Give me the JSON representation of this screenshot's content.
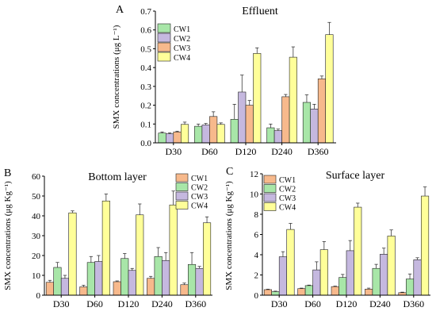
{
  "figure": {
    "colors": {
      "CW1": "#f7b98c",
      "CW2": "#a8e6a8",
      "CW3": "#c5b8df",
      "CW4": "#ffff99"
    },
    "icons": {
      "error-bar": "error-bar-icon"
    }
  },
  "chart_data": [
    {
      "type": "bar",
      "panel": "A",
      "title": "Effluent",
      "xlabel": "",
      "ylabel": "SMX concentrations (μg L⁻¹)",
      "ylim": [
        0,
        0.7
      ],
      "yticks": [
        "0.0",
        "0.1",
        "0.2",
        "0.3",
        "0.4",
        "0.5",
        "0.6",
        "0.7"
      ],
      "grid": false,
      "legend_position": "top-left",
      "categories": [
        "D30",
        "D60",
        "D120",
        "D240",
        "D360"
      ],
      "series": [
        {
          "name": "CW1",
          "color": "#a8e6a8",
          "values": [
            0.052,
            0.088,
            0.125,
            0.08,
            0.215
          ],
          "errors": [
            0.006,
            0.012,
            0.08,
            0.02,
            0.04
          ]
        },
        {
          "name": "CW2",
          "color": "#c5b8df",
          "values": [
            0.048,
            0.095,
            0.27,
            0.065,
            0.18
          ],
          "errors": [
            0.005,
            0.008,
            0.09,
            0.008,
            0.025
          ]
        },
        {
          "name": "CW3",
          "color": "#f7b98c",
          "values": [
            0.058,
            0.14,
            0.2,
            0.245,
            0.34
          ],
          "errors": [
            0.004,
            0.025,
            0.025,
            0.012,
            0.015
          ]
        },
        {
          "name": "CW4",
          "color": "#ffff99",
          "values": [
            0.098,
            0.098,
            0.475,
            0.455,
            0.575
          ],
          "errors": [
            0.012,
            0.008,
            0.03,
            0.055,
            0.065
          ]
        }
      ]
    },
    {
      "type": "bar",
      "panel": "B",
      "title": "Bottom layer",
      "xlabel": "",
      "ylabel": "SMX concentrations (μg Kg⁻¹)",
      "ylim": [
        0,
        60
      ],
      "yticks": [
        "0",
        "10",
        "20",
        "30",
        "40",
        "50",
        "60"
      ],
      "grid": false,
      "legend_position": "top-right",
      "categories": [
        "D30",
        "D60",
        "D120",
        "D240",
        "D360"
      ],
      "series": [
        {
          "name": "CW1",
          "color": "#f7b98c",
          "values": [
            6.5,
            4.2,
            6.8,
            8.5,
            5.3
          ],
          "errors": [
            1.0,
            0.8,
            0.4,
            1.0,
            0.8
          ]
        },
        {
          "name": "CW2",
          "color": "#a8e6a8",
          "values": [
            14.0,
            16.5,
            18.5,
            19.5,
            15.5
          ],
          "errors": [
            2.5,
            3.0,
            2.5,
            4.5,
            6.0
          ]
        },
        {
          "name": "CW3",
          "color": "#c5b8df",
          "values": [
            8.5,
            17.0,
            12.5,
            17.5,
            13.5
          ],
          "errors": [
            1.5,
            3.0,
            1.0,
            4.0,
            1.0
          ]
        },
        {
          "name": "CW4",
          "color": "#ffff99",
          "values": [
            41.5,
            47.5,
            40.5,
            45.5,
            36.5
          ],
          "errors": [
            1.0,
            3.5,
            5.5,
            7.0,
            3.0
          ]
        }
      ]
    },
    {
      "type": "bar",
      "panel": "C",
      "title": "Surface layer",
      "xlabel": "",
      "ylabel": "SMX concentrations (μg Kg⁻¹)",
      "ylim": [
        0,
        12
      ],
      "yticks": [
        "0",
        "2",
        "4",
        "6",
        "8",
        "10",
        "12"
      ],
      "grid": false,
      "legend_position": "top-left",
      "categories": [
        "D30",
        "D60",
        "D120",
        "D240",
        "D360"
      ],
      "series": [
        {
          "name": "CW1",
          "color": "#f7b98c",
          "values": [
            0.55,
            0.65,
            0.85,
            0.6,
            0.25
          ],
          "errors": [
            0.05,
            0.05,
            0.05,
            0.1,
            0.05
          ]
        },
        {
          "name": "CW2",
          "color": "#a8e6a8",
          "values": [
            0.35,
            0.95,
            1.75,
            2.65,
            1.6
          ],
          "errors": [
            0.05,
            0.05,
            0.3,
            0.4,
            0.5
          ]
        },
        {
          "name": "CW3",
          "color": "#c5b8df",
          "values": [
            3.8,
            2.5,
            4.4,
            4.05,
            3.5
          ],
          "errors": [
            0.5,
            0.8,
            1.0,
            0.6,
            0.2
          ]
        },
        {
          "name": "CW4",
          "color": "#ffff99",
          "values": [
            6.5,
            4.5,
            8.7,
            5.85,
            9.8
          ],
          "errors": [
            0.6,
            0.8,
            0.4,
            0.6,
            0.9
          ]
        }
      ]
    }
  ]
}
